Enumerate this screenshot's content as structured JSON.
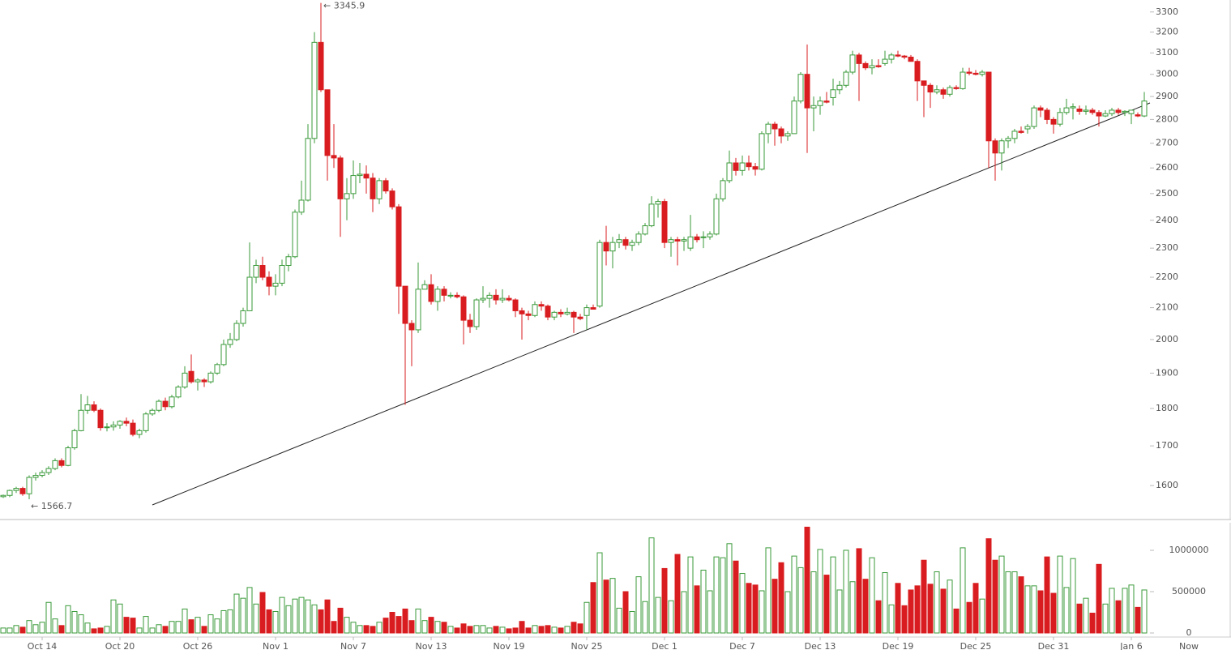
{
  "chart_data": {
    "type": "candlestick",
    "categories": [
      null,
      null,
      null,
      null,
      null,
      null,
      "Oct 14",
      null,
      null,
      null,
      null,
      null,
      null,
      null,
      null,
      null,
      null,
      null,
      "Oct 20",
      null,
      null,
      null,
      null,
      null,
      null,
      null,
      null,
      null,
      null,
      null,
      "Oct 26",
      null,
      null,
      null,
      null,
      null,
      null,
      null,
      null,
      null,
      null,
      null,
      "Nov 1",
      null,
      null,
      null,
      null,
      null,
      null,
      null,
      null,
      null,
      null,
      null,
      "Nov 7",
      null,
      null,
      null,
      null,
      null,
      null,
      null,
      null,
      null,
      null,
      null,
      "Nov 13",
      null,
      null,
      null,
      null,
      null,
      null,
      null,
      null,
      null,
      null,
      null,
      "Nov 19",
      null,
      null,
      null,
      null,
      null,
      null,
      null,
      null,
      null,
      null,
      null,
      "Nov 25",
      null,
      null,
      null,
      null,
      null,
      null,
      null,
      null,
      null,
      null,
      null,
      "Dec 1",
      null,
      null,
      null,
      null,
      null,
      null,
      null,
      null,
      null,
      null,
      null,
      "Dec 7",
      null,
      null,
      null,
      null,
      null,
      null,
      null,
      null,
      null,
      null,
      null,
      "Dec 13",
      null,
      null,
      null,
      null,
      null,
      null,
      null,
      null,
      null,
      null,
      null,
      "Dec 19",
      null,
      null,
      null,
      null,
      null,
      null,
      null,
      null,
      null,
      null,
      null,
      "Dec 25",
      null,
      null,
      null,
      null,
      null,
      null,
      null,
      null,
      null,
      null,
      null,
      "Dec 31",
      null,
      null,
      null,
      null,
      null,
      null,
      null,
      null,
      null,
      null,
      null,
      "Jan 6",
      null,
      null
    ],
    "now_label": "Now",
    "open": [
      1573,
      1576,
      1588,
      1593,
      1580,
      1620,
      1625,
      1632,
      1642,
      1662,
      1650,
      1695,
      1740,
      1795,
      1810,
      1795,
      1748,
      1750,
      1755,
      1765,
      1760,
      1730,
      1740,
      1785,
      1795,
      1820,
      1805,
      1832,
      1860,
      1905,
      1875,
      1880,
      1875,
      1900,
      1925,
      1985,
      2000,
      2050,
      2090,
      2200,
      2240,
      2200,
      2170,
      2180,
      2240,
      2270,
      2430,
      2475,
      2720,
      3150,
      2930,
      2650,
      2640,
      2480,
      2500,
      2570,
      2575,
      2560,
      2480,
      2550,
      2510,
      2450,
      2170,
      2050,
      2030,
      2160,
      2175,
      2120,
      2160,
      2140,
      2140,
      2135,
      2060,
      2040,
      2125,
      2130,
      2140,
      2125,
      2130,
      2125,
      2090,
      2080,
      2075,
      2110,
      2105,
      2070,
      2085,
      2080,
      2085,
      2070,
      2075,
      2100,
      2105,
      2320,
      2290,
      2320,
      2330,
      2310,
      2320,
      2350,
      2380,
      2460,
      2470,
      2320,
      2330,
      2325,
      2300,
      2340,
      2340,
      2340,
      2350,
      2480,
      2550,
      2620,
      2590,
      2620,
      2605,
      2595,
      2740,
      2780,
      2760,
      2730,
      2740,
      2880,
      3000,
      2850,
      2860,
      2880,
      2895,
      2930,
      2950,
      3010,
      3090,
      3050,
      3030,
      3040,
      3050,
      3070,
      3090,
      3085,
      3080,
      3060,
      2970,
      2950,
      2920,
      2930,
      2910,
      2940,
      2935,
      3010,
      3005,
      3000,
      3010,
      2710,
      2660,
      2710,
      2720,
      2750,
      2760,
      2770,
      2850,
      2840,
      2800,
      2780,
      2830,
      2850,
      2845,
      2835,
      2840,
      2830,
      2815,
      2825,
      2840,
      2830,
      2825,
      2820,
      2815
    ],
    "high": [
      1578,
      1590,
      1597,
      1597,
      1625,
      1632,
      1638,
      1648,
      1668,
      1668,
      1700,
      1745,
      1840,
      1835,
      1820,
      1800,
      1760,
      1765,
      1768,
      1775,
      1770,
      1745,
      1790,
      1800,
      1825,
      1830,
      1838,
      1865,
      1920,
      1955,
      1885,
      1885,
      1905,
      1930,
      2000,
      2020,
      2060,
      2100,
      2320,
      2260,
      2270,
      2220,
      2210,
      2260,
      2280,
      2440,
      2550,
      2780,
      3200,
      3345.9,
      2930,
      2780,
      2650,
      2560,
      2630,
      2620,
      2610,
      2580,
      2560,
      2560,
      2520,
      2460,
      2170,
      2060,
      2250,
      2190,
      2210,
      2170,
      2170,
      2150,
      2150,
      2140,
      2080,
      2130,
      2170,
      2150,
      2160,
      2160,
      2140,
      2130,
      2100,
      2090,
      2120,
      2120,
      2110,
      2090,
      2095,
      2100,
      2090,
      2080,
      2110,
      2110,
      2330,
      2380,
      2340,
      2350,
      2340,
      2330,
      2360,
      2390,
      2490,
      2480,
      2480,
      2340,
      2340,
      2340,
      2420,
      2350,
      2360,
      2360,
      2500,
      2560,
      2670,
      2640,
      2650,
      2650,
      2620,
      2750,
      2790,
      2790,
      2770,
      2750,
      2900,
      3010,
      3140,
      2900,
      2900,
      2920,
      2980,
      2970,
      3020,
      3110,
      3100,
      3060,
      3070,
      3070,
      3110,
      3100,
      3110,
      3090,
      3090,
      3070,
      2970,
      2960,
      2950,
      2940,
      2950,
      2950,
      3030,
      3030,
      3020,
      3020,
      3010,
      2720,
      2720,
      2730,
      2760,
      2770,
      2780,
      2860,
      2860,
      2850,
      2810,
      2850,
      2890,
      2870,
      2860,
      2860,
      2850,
      2840,
      2840,
      2850,
      2850,
      2840,
      2830,
      2830,
      2920
    ],
    "low": [
      1570,
      1572,
      1582,
      1575,
      1566.7,
      1612,
      1620,
      1626,
      1638,
      1645,
      1648,
      1690,
      1738,
      1785,
      1790,
      1740,
      1738,
      1740,
      1745,
      1752,
      1725,
      1720,
      1735,
      1780,
      1790,
      1795,
      1800,
      1828,
      1855,
      1870,
      1850,
      1860,
      1870,
      1895,
      1920,
      1975,
      1995,
      2040,
      2090,
      2180,
      2190,
      2140,
      2140,
      2170,
      2220,
      2265,
      2420,
      2470,
      2700,
      2920,
      2550,
      2600,
      2340,
      2400,
      2480,
      2540,
      2500,
      2430,
      2460,
      2500,
      2440,
      2080,
      1810,
      1920,
      2020,
      2160,
      2110,
      2090,
      2120,
      2130,
      2130,
      1985,
      2020,
      2030,
      2115,
      2100,
      2110,
      2115,
      2120,
      2070,
      2000,
      2060,
      2070,
      2090,
      2060,
      2060,
      2070,
      2075,
      2020,
      2060,
      2030,
      2095,
      2100,
      2240,
      2230,
      2300,
      2295,
      2290,
      2310,
      2345,
      2375,
      2410,
      2300,
      2270,
      2240,
      2290,
      2290,
      2320,
      2300,
      2330,
      2345,
      2470,
      2540,
      2570,
      2570,
      2590,
      2570,
      2590,
      2700,
      2690,
      2700,
      2710,
      2740,
      2870,
      2660,
      2750,
      2820,
      2870,
      2860,
      2910,
      2940,
      3000,
      2880,
      3020,
      3000,
      3030,
      3040,
      3050,
      3080,
      3070,
      3060,
      2880,
      2810,
      2850,
      2910,
      2890,
      2900,
      2930,
      2930,
      2995,
      2995,
      2990,
      2600,
      2550,
      2590,
      2680,
      2700,
      2740,
      2740,
      2760,
      2810,
      2780,
      2740,
      2770,
      2820,
      2800,
      2820,
      2820,
      2820,
      2770,
      2810,
      2815,
      2820,
      2815,
      2780,
      2810,
      2810
    ],
    "close": [
      1576,
      1588,
      1593,
      1580,
      1620,
      1625,
      1632,
      1642,
      1662,
      1650,
      1695,
      1740,
      1795,
      1810,
      1795,
      1748,
      1750,
      1755,
      1765,
      1760,
      1730,
      1740,
      1785,
      1795,
      1820,
      1805,
      1832,
      1860,
      1900,
      1875,
      1880,
      1875,
      1900,
      1925,
      1985,
      2000,
      2050,
      2090,
      2200,
      2240,
      2200,
      2170,
      2180,
      2240,
      2270,
      2430,
      2475,
      2720,
      3150,
      2930,
      2650,
      2640,
      2480,
      2500,
      2570,
      2575,
      2560,
      2480,
      2550,
      2510,
      2450,
      2170,
      2050,
      2030,
      2160,
      2175,
      2120,
      2160,
      2140,
      2140,
      2135,
      2060,
      2040,
      2125,
      2130,
      2140,
      2125,
      2130,
      2125,
      2090,
      2080,
      2075,
      2110,
      2105,
      2070,
      2085,
      2080,
      2085,
      2070,
      2065,
      2100,
      2095,
      2320,
      2290,
      2320,
      2330,
      2310,
      2320,
      2350,
      2380,
      2460,
      2470,
      2320,
      2330,
      2325,
      2330,
      2340,
      2330,
      2340,
      2350,
      2480,
      2550,
      2620,
      2590,
      2620,
      2605,
      2595,
      2740,
      2780,
      2760,
      2730,
      2740,
      2880,
      3000,
      2850,
      2860,
      2880,
      2875,
      2930,
      2950,
      3010,
      3090,
      3050,
      3030,
      3040,
      3035,
      3070,
      3090,
      3085,
      3080,
      3060,
      2970,
      2950,
      2920,
      2930,
      2910,
      2940,
      2935,
      3010,
      3005,
      3000,
      3010,
      2710,
      2660,
      2710,
      2720,
      2750,
      2745,
      2770,
      2850,
      2840,
      2800,
      2780,
      2830,
      2850,
      2855,
      2835,
      2840,
      2830,
      2815,
      2825,
      2840,
      2830,
      2835,
      2840,
      2815,
      2880
    ],
    "volume": [
      60000,
      60000,
      90000,
      70000,
      150000,
      100000,
      130000,
      370000,
      170000,
      90000,
      330000,
      260000,
      220000,
      120000,
      50000,
      60000,
      80000,
      400000,
      350000,
      190000,
      180000,
      60000,
      200000,
      60000,
      100000,
      80000,
      140000,
      140000,
      290000,
      160000,
      190000,
      80000,
      220000,
      170000,
      270000,
      280000,
      470000,
      420000,
      550000,
      350000,
      490000,
      280000,
      260000,
      430000,
      330000,
      410000,
      430000,
      400000,
      340000,
      280000,
      400000,
      140000,
      300000,
      190000,
      130000,
      90000,
      90000,
      80000,
      130000,
      180000,
      250000,
      200000,
      290000,
      150000,
      290000,
      150000,
      190000,
      140000,
      130000,
      80000,
      60000,
      110000,
      80000,
      90000,
      90000,
      60000,
      80000,
      70000,
      50000,
      60000,
      140000,
      60000,
      90000,
      80000,
      90000,
      70000,
      60000,
      80000,
      130000,
      110000,
      370000,
      610000,
      970000,
      640000,
      660000,
      300000,
      500000,
      260000,
      680000,
      380000,
      1150000,
      430000,
      780000,
      390000,
      950000,
      500000,
      920000,
      570000,
      760000,
      510000,
      920000,
      910000,
      1080000,
      870000,
      720000,
      600000,
      580000,
      510000,
      1030000,
      650000,
      850000,
      500000,
      930000,
      790000,
      1280000,
      740000,
      1010000,
      700000,
      920000,
      520000,
      1000000,
      620000,
      1020000,
      650000,
      910000,
      390000,
      730000,
      340000,
      600000,
      330000,
      520000,
      570000,
      880000,
      590000,
      740000,
      530000,
      640000,
      290000,
      1030000,
      370000,
      600000,
      410000,
      1140000,
      880000,
      930000,
      740000,
      740000,
      680000,
      570000,
      570000,
      510000,
      920000,
      480000,
      930000,
      550000,
      900000,
      350000,
      420000,
      240000,
      830000,
      350000,
      540000,
      390000,
      540000,
      580000,
      310000,
      520000
    ],
    "ylim": [
      1519,
      3361
    ],
    "log": true,
    "yticks": [
      1600,
      1700,
      1800,
      1900,
      2000,
      2100,
      2200,
      2300,
      2400,
      2500,
      2600,
      2700,
      2800,
      2900,
      3000,
      3100,
      3200,
      3300
    ],
    "y2lim": [
      0,
      1333000
    ],
    "y2ticks": [
      0,
      500000,
      1000000
    ],
    "max_label": "← 3345.9",
    "min_label": "← 1566.7",
    "up_color": "#3a9a3a",
    "down_color": "#d91c1f"
  }
}
